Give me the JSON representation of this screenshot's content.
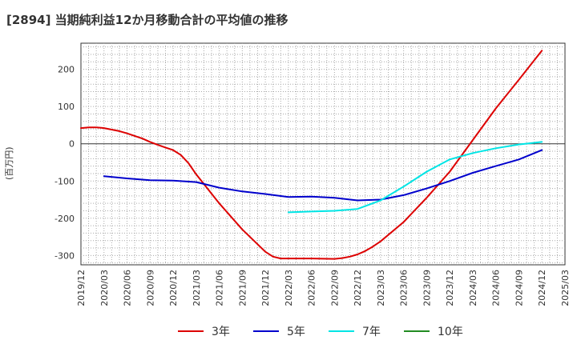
{
  "chart_data": {
    "type": "line",
    "title": "[2894]  当期純利益12か月移動合計の平均値の推移",
    "ylabel": "(百万円)",
    "xlabel": "",
    "ylim": [
      -325,
      270
    ],
    "yticks": [
      200,
      100,
      0,
      -100,
      -200,
      -300
    ],
    "x_ticks": [
      "2019/12",
      "2020/03",
      "2020/06",
      "2020/09",
      "2020/12",
      "2021/03",
      "2021/06",
      "2021/09",
      "2021/12",
      "2022/03",
      "2022/06",
      "2022/09",
      "2022/12",
      "2023/03",
      "2023/06",
      "2023/09",
      "2023/12",
      "2024/03",
      "2024/06",
      "2024/09",
      "2024/12",
      "2025/03"
    ],
    "grid": true,
    "legend_position": "bottom",
    "series": [
      {
        "name": "3年",
        "color": "#dd0000",
        "x": [
          "2019/12",
          "2020/01",
          "2020/02",
          "2020/03",
          "2020/04",
          "2020/05",
          "2020/06",
          "2020/07",
          "2020/08",
          "2020/09",
          "2020/10",
          "2020/11",
          "2020/12",
          "2021/01",
          "2021/02",
          "2021/03",
          "2021/06",
          "2021/09",
          "2021/12",
          "2022/01",
          "2022/02",
          "2022/03",
          "2022/06",
          "2022/09",
          "2022/10",
          "2022/11",
          "2022/12",
          "2023/01",
          "2023/02",
          "2023/03",
          "2023/06",
          "2023/09",
          "2023/12",
          "2024/03",
          "2024/06",
          "2024/09",
          "2024/12"
        ],
        "values": [
          42,
          44,
          44,
          42,
          38,
          34,
          28,
          21,
          14,
          5,
          -3,
          -10,
          -17,
          -30,
          -52,
          -82,
          -160,
          -230,
          -290,
          -303,
          -308,
          -308,
          -308,
          -309,
          -307,
          -303,
          -297,
          -288,
          -276,
          -262,
          -210,
          -145,
          -75,
          10,
          95,
          172,
          250
        ]
      },
      {
        "name": "5年",
        "color": "#0000cc",
        "x": [
          "2020/03",
          "2020/06",
          "2020/09",
          "2020/12",
          "2021/03",
          "2021/06",
          "2021/09",
          "2021/12",
          "2022/03",
          "2022/06",
          "2022/09",
          "2022/12",
          "2023/03",
          "2023/06",
          "2023/09",
          "2023/12",
          "2024/03",
          "2024/06",
          "2024/09",
          "2024/12"
        ],
        "values": [
          -87,
          -93,
          -98,
          -99,
          -103,
          -118,
          -128,
          -135,
          -143,
          -142,
          -145,
          -152,
          -150,
          -138,
          -120,
          -100,
          -78,
          -60,
          -42,
          -17
        ]
      },
      {
        "name": "7年",
        "color": "#00e5e5",
        "x": [
          "2022/03",
          "2022/06",
          "2022/09",
          "2022/12",
          "2023/03",
          "2023/06",
          "2023/09",
          "2023/12",
          "2024/03",
          "2024/06",
          "2024/09",
          "2024/12"
        ],
        "values": [
          -184,
          -182,
          -180,
          -175,
          -152,
          -115,
          -75,
          -42,
          -25,
          -12,
          -2,
          5
        ]
      },
      {
        "name": "10年",
        "color": "#228b22",
        "x": [],
        "values": []
      }
    ]
  }
}
